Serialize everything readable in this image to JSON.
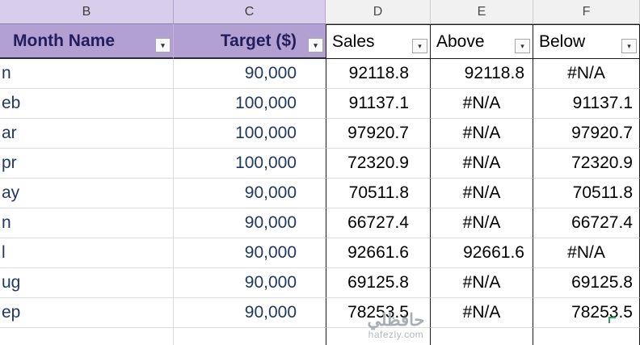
{
  "column_letters": [
    "B",
    "C",
    "D",
    "E",
    "F"
  ],
  "header": {
    "month": "Month Name",
    "target": "Target ($)",
    "sales": "Sales",
    "above": "Above",
    "below": "Below"
  },
  "rows": [
    {
      "month": "n",
      "target": "90,000",
      "sales": "92118.8",
      "above": "92118.8",
      "below": "#N/A"
    },
    {
      "month": "eb",
      "target": "100,000",
      "sales": "91137.1",
      "above": "#N/A",
      "below": "91137.1"
    },
    {
      "month": "ar",
      "target": "100,000",
      "sales": "97920.7",
      "above": "#N/A",
      "below": "97920.7"
    },
    {
      "month": "pr",
      "target": "100,000",
      "sales": "72320.9",
      "above": "#N/A",
      "below": "72320.9"
    },
    {
      "month": "ay",
      "target": "90,000",
      "sales": "70511.8",
      "above": "#N/A",
      "below": "70511.8"
    },
    {
      "month": "n",
      "target": "90,000",
      "sales": "66727.4",
      "above": "#N/A",
      "below": "66727.4"
    },
    {
      "month": "l",
      "target": "90,000",
      "sales": "92661.6",
      "above": "92661.6",
      "below": "#N/A"
    },
    {
      "month": "ug",
      "target": "90,000",
      "sales": "69125.8",
      "above": "#N/A",
      "below": "69125.8"
    },
    {
      "month": "ep",
      "target": "90,000",
      "sales": "78253.5",
      "above": "#N/A",
      "below": "78253.5"
    }
  ],
  "watermark": {
    "logo_text": "حافظلي",
    "domain": "hafezly.com"
  },
  "colors": {
    "header_fill": "#b2a0d3",
    "header_text": "#231d5c",
    "data_text_blue": "#203864",
    "table_border": "#1a1a1a",
    "gridline": "#dcdcdc",
    "green_marker": "#2e9e5b"
  }
}
